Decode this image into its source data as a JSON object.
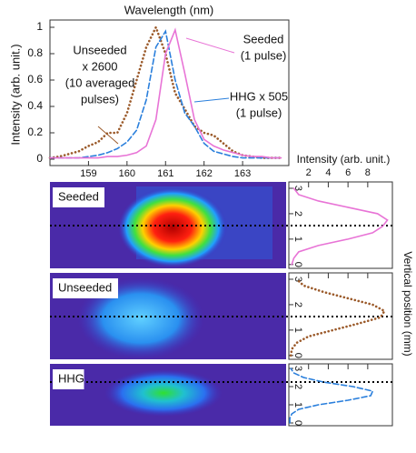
{
  "chart_data": [
    {
      "type": "line",
      "x_label": "Wavelength (nm)",
      "y_label": "Intensity (arb. unit.)",
      "x": [
        158,
        158.25,
        158.5,
        158.75,
        159,
        159.25,
        159.5,
        159.75,
        160,
        160.25,
        160.5,
        160.75,
        161,
        161.25,
        161.5,
        161.75,
        162,
        162.25,
        162.5,
        162.75,
        163,
        163.25,
        163.5,
        163.75,
        164
      ],
      "xlim": [
        158,
        164.2
      ],
      "xticks": [
        159,
        160,
        161,
        162,
        163
      ],
      "ylim": [
        0,
        1
      ],
      "yticks": [
        0,
        0.2,
        0.4,
        0.6,
        0.8,
        1
      ],
      "series": [
        {
          "name": "Seeded",
          "color": "#e874d6",
          "style": "solid",
          "values": [
            0.01,
            0.01,
            0.01,
            0.01,
            0.01,
            0.01,
            0.02,
            0.02,
            0.03,
            0.05,
            0.1,
            0.3,
            0.8,
            0.98,
            0.65,
            0.3,
            0.15,
            0.1,
            0.07,
            0.05,
            0.03,
            0.02,
            0.02,
            0.01,
            0.01
          ]
        },
        {
          "name": "HHG",
          "color": "#2a7fdc",
          "style": "dashed",
          "values": [
            0.01,
            0.01,
            0.01,
            0.01,
            0.02,
            0.03,
            0.05,
            0.08,
            0.13,
            0.22,
            0.45,
            0.85,
            0.97,
            0.6,
            0.35,
            0.25,
            0.12,
            0.06,
            0.04,
            0.02,
            0.01,
            0.01,
            0.01,
            0.01,
            0.01
          ]
        },
        {
          "name": "Unseeded",
          "color": "#9b5a2a",
          "style": "dotted",
          "values": [
            0.01,
            0.02,
            0.04,
            0.06,
            0.1,
            0.13,
            0.2,
            0.2,
            0.35,
            0.6,
            0.85,
            1.0,
            0.8,
            0.5,
            0.38,
            0.25,
            0.2,
            0.18,
            0.12,
            0.06,
            0.03,
            0.02,
            0.01,
            0.01,
            0.01
          ]
        }
      ],
      "annotations": [
        {
          "lines": [
            "Seeded",
            "(1 pulse)"
          ],
          "color": "#e874d6"
        },
        {
          "lines": [
            "Unseeded",
            "x 2600",
            "(10 averaged",
            "pulses)"
          ],
          "color": "#9b5a2a"
        },
        {
          "lines": [
            "HHG x 505",
            "(1 pulse)"
          ],
          "color": "#2a7fdc"
        }
      ]
    },
    {
      "type": "profile",
      "panel_label": "Seeded",
      "color": "#e874d6",
      "style": "solid",
      "y_label": "Intensity (arb. unit.)",
      "side_label": "Vertical position (mm)",
      "ylim": [
        0,
        10.5
      ],
      "yticks": [
        2,
        4,
        6,
        8
      ],
      "x": [
        0,
        0.25,
        0.5,
        0.75,
        1,
        1.25,
        1.5,
        1.75,
        2,
        2.25,
        2.5,
        2.75,
        3
      ],
      "xlim": [
        -0.15,
        3.25
      ],
      "xticks": [
        0,
        1,
        2,
        3
      ],
      "series": [
        {
          "values": [
            0.3,
            0.5,
            1,
            3,
            6,
            8.5,
            9.5,
            10,
            9,
            6,
            3,
            1,
            0.5
          ]
        }
      ]
    },
    {
      "type": "profile",
      "panel_label": "Unseeded",
      "color": "#9b5a2a",
      "style": "dotted",
      "ylim": [
        0,
        10.5
      ],
      "x": [
        0,
        0.25,
        0.5,
        0.75,
        1,
        1.25,
        1.5,
        1.75,
        2,
        2.25,
        2.5,
        2.75,
        3
      ],
      "xlim": [
        -0.15,
        3.25
      ],
      "xticks": [
        0,
        1,
        2,
        3
      ],
      "series": [
        {
          "values": [
            0.2,
            0.3,
            0.8,
            2,
            4.5,
            7,
            9.3,
            9.7,
            8.5,
            6,
            3.5,
            1.5,
            0.8
          ]
        }
      ]
    },
    {
      "type": "profile",
      "panel_label": "HHG",
      "color": "#2a7fdc",
      "style": "dashed",
      "ylim": [
        0,
        10.5
      ],
      "x": [
        0,
        0.25,
        0.5,
        0.75,
        1,
        1.25,
        1.5,
        1.75,
        2,
        2.25,
        2.5,
        2.75,
        3
      ],
      "xlim": [
        -0.15,
        3.25
      ],
      "xticks": [
        0,
        1,
        2,
        3
      ],
      "series": [
        {
          "values": [
            0.1,
            0.1,
            0.3,
            1,
            3,
            6,
            8.3,
            8.5,
            6.5,
            3.5,
            1.5,
            0.5,
            0.2
          ]
        }
      ]
    }
  ]
}
